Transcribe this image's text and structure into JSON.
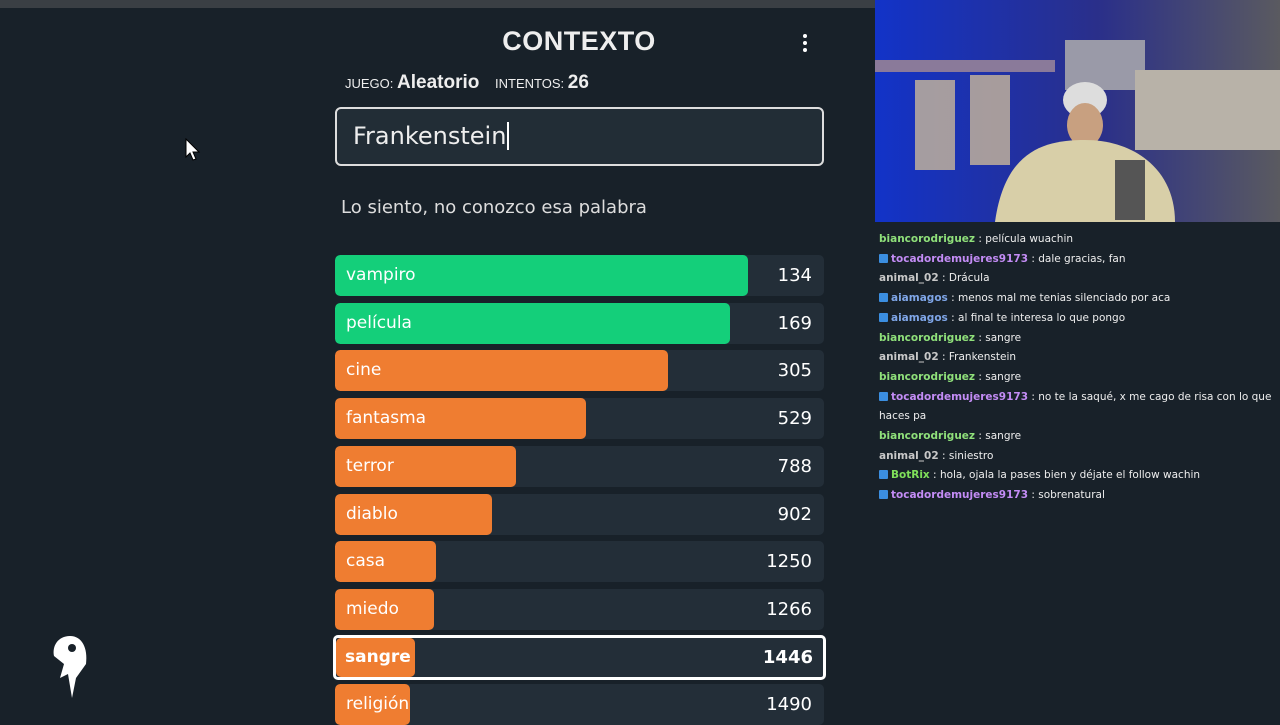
{
  "header": {
    "title": "CONTEXTO",
    "game_label": "JUEGO:",
    "game_value": "Aleatorio",
    "attempts_label": "INTENTOS:",
    "attempts_value": 26
  },
  "input": {
    "value": "Frankenstein"
  },
  "message": "Lo siento, no conozco esa palabra",
  "guesses": [
    {
      "word": "vampiro",
      "rank": 134
    },
    {
      "word": "película",
      "rank": 169
    },
    {
      "word": "cine",
      "rank": 305
    },
    {
      "word": "fantasma",
      "rank": 529
    },
    {
      "word": "terror",
      "rank": 788
    },
    {
      "word": "diablo",
      "rank": 902
    },
    {
      "word": "casa",
      "rank": 1250
    },
    {
      "word": "miedo",
      "rank": 1266
    },
    {
      "word": "sangre",
      "rank": 1446,
      "highlight": true
    },
    {
      "word": "religión",
      "rank": 1490
    }
  ],
  "chat": {
    "separator": ":",
    "messages": [
      {
        "user": "biancorodriguez",
        "color": "#8fe07a",
        "text": "película wuachin"
      },
      {
        "user": "tocadordemujeres9173",
        "color": "#c38cf5",
        "badges": true,
        "text": "dale gracias, fan"
      },
      {
        "user": "animal_02",
        "color": "#c8c8c8",
        "text": "Drácula"
      },
      {
        "user": "aiamagos",
        "color": "#7fa6e8",
        "badges": true,
        "text": "menos mal me tenias silenciado por aca"
      },
      {
        "user": "aiamagos",
        "color": "#7fa6e8",
        "badges": true,
        "text": "al final te interesa lo que pongo"
      },
      {
        "user": "biancorodriguez",
        "color": "#8fe07a",
        "text": "sangre"
      },
      {
        "user": "animal_02",
        "color": "#c8c8c8",
        "text": "Frankenstein"
      },
      {
        "user": "biancorodriguez",
        "color": "#8fe07a",
        "text": "sangre"
      },
      {
        "user": "tocadordemujeres9173",
        "color": "#c38cf5",
        "badges": true,
        "text": "no te la saqué, x me cago de risa con lo que haces pa"
      },
      {
        "user": "biancorodriguez",
        "color": "#8fe07a",
        "text": "sangre"
      },
      {
        "user": "animal_02",
        "color": "#c8c8c8",
        "text": "siniestro"
      },
      {
        "user": "BotRix",
        "color": "#7fe05a",
        "badges": true,
        "text": "hola, ojala la pases bien y déjate el follow wachin"
      },
      {
        "user": "tocadordemujeres9173",
        "color": "#c38cf5",
        "badges": true,
        "text": "sobrenatural"
      }
    ]
  }
}
